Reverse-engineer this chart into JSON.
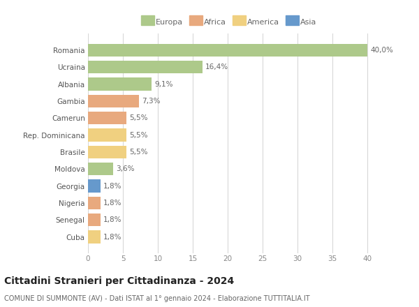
{
  "countries": [
    "Romania",
    "Ucraina",
    "Albania",
    "Gambia",
    "Camerun",
    "Rep. Dominicana",
    "Brasile",
    "Moldova",
    "Georgia",
    "Nigeria",
    "Senegal",
    "Cuba"
  ],
  "values": [
    40.0,
    16.4,
    9.1,
    7.3,
    5.5,
    5.5,
    5.5,
    3.6,
    1.8,
    1.8,
    1.8,
    1.8
  ],
  "labels": [
    "40,0%",
    "16,4%",
    "9,1%",
    "7,3%",
    "5,5%",
    "5,5%",
    "5,5%",
    "3,6%",
    "1,8%",
    "1,8%",
    "1,8%",
    "1,8%"
  ],
  "continents": [
    "Europa",
    "Europa",
    "Europa",
    "Africa",
    "Africa",
    "America",
    "America",
    "Europa",
    "Asia",
    "Africa",
    "Africa",
    "America"
  ],
  "colors": {
    "Europa": "#adc98a",
    "Africa": "#e8a97e",
    "America": "#f0d080",
    "Asia": "#6699cc"
  },
  "title": "Cittadini Stranieri per Cittadinanza - 2024",
  "subtitle": "COMUNE DI SUMMONTE (AV) - Dati ISTAT al 1° gennaio 2024 - Elaborazione TUTTITALIA.IT",
  "xlabel_ticks": [
    0,
    5,
    10,
    15,
    20,
    25,
    30,
    35,
    40
  ],
  "xlim": [
    0,
    42
  ],
  "background_color": "#ffffff",
  "grid_color": "#d8d8d8",
  "bar_height": 0.75,
  "label_fontsize": 7.5,
  "tick_fontsize": 7.5,
  "title_fontsize": 10,
  "subtitle_fontsize": 7
}
